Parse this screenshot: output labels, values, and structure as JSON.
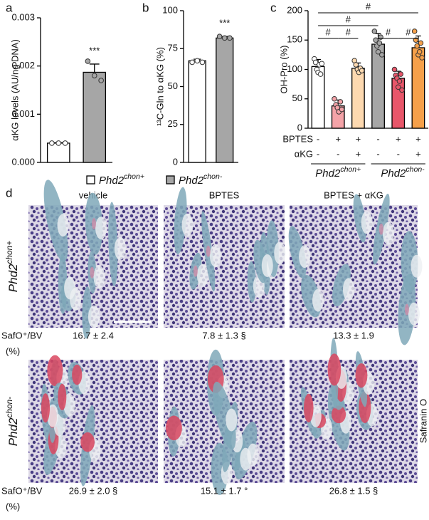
{
  "panel_labels": [
    "a",
    "b",
    "c",
    "d"
  ],
  "chart_data": [
    {
      "type": "bar",
      "y_label": "αKG levels (AU/ng DNA)",
      "values": [
        0.0004,
        0.00187
      ],
      "errors": [
        1e-05,
        0.00017
      ],
      "points": [
        [
          0.0004,
          0.0004,
          0.0004
        ],
        [
          0.0021,
          0.0018,
          0.0017
        ]
      ],
      "colors": [
        "#ffffff",
        "#a6a6a6"
      ],
      "ylim": [
        0,
        0.003
      ],
      "yticks": [
        {
          "value": 0,
          "label": "0.000"
        },
        {
          "value": 0.001,
          "label": "0.001"
        },
        {
          "value": 0.002,
          "label": "0.002"
        },
        {
          "value": 0.003,
          "label": "0.003"
        }
      ],
      "annotations": [
        "***"
      ]
    },
    {
      "type": "bar",
      "y_label": "¹³C-Gln to αKG (%)",
      "values": [
        67,
        82
      ],
      "errors": [
        1,
        1
      ],
      "points": [
        [
          66,
          67,
          66
        ],
        [
          83,
          82,
          82
        ]
      ],
      "colors": [
        "#ffffff",
        "#a6a6a6"
      ],
      "ylim": [
        0,
        100
      ],
      "yticks": [
        0,
        25,
        50,
        75,
        100
      ],
      "annotations": [
        "***"
      ]
    },
    {
      "type": "bar",
      "y_label": "OH-Pro (%)",
      "values": [
        105,
        38,
        102,
        143,
        85,
        137
      ],
      "errors": [
        12,
        10,
        9,
        18,
        12,
        20
      ],
      "points": [
        [
          118,
          112,
          100,
          95,
          108,
          92,
          110
        ],
        [
          50,
          40,
          35,
          28,
          45,
          32
        ],
        [
          115,
          108,
          100,
          95,
          102,
          98
        ],
        [
          165,
          150,
          140,
          130,
          145,
          155,
          125
        ],
        [
          100,
          90,
          85,
          70,
          80,
          92,
          65
        ],
        [
          165,
          150,
          140,
          125,
          130,
          145,
          120
        ]
      ],
      "colors": [
        "#ffffff",
        "#f4a3a8",
        "#fdd9b0",
        "#a6a6a6",
        "#e8566a",
        "#f5a04a"
      ],
      "ylim": [
        0,
        200
      ],
      "yticks": [
        0,
        50,
        100,
        150,
        200
      ],
      "annotations": [
        "#",
        "#",
        "#",
        "#",
        "#",
        "#"
      ]
    }
  ],
  "legend": [
    {
      "gene": "Phd2",
      "sup": "chon+",
      "color": "#ffffff"
    },
    {
      "gene": "Phd2",
      "sup": "chon-",
      "color": "#a6a6a6"
    }
  ],
  "treatments": [
    {
      "label": "BPTES",
      "signs": [
        "-",
        "+",
        "+",
        "-",
        "+",
        "+"
      ]
    },
    {
      "label": "αKG",
      "signs": [
        "-",
        "-",
        "+",
        "-",
        "-",
        "+"
      ]
    }
  ],
  "groups": [
    {
      "gene": "Phd2",
      "sup": "chon+"
    },
    {
      "gene": "Phd2",
      "sup": "chon-"
    }
  ],
  "histology": {
    "columns": [
      "vehicle",
      "BPTES",
      "BPTES + αKG"
    ],
    "rows": [
      {
        "gene": "Phd2",
        "sup": "chon+",
        "metric": "SafO⁺/BV",
        "unit": "(%)",
        "values": [
          "16.7 ± 2.4",
          "7.8 ± 1.3 §",
          "13.3 ± 1.9"
        ]
      },
      {
        "gene": "Phd2",
        "sup": "chon-",
        "metric": "SafO⁺/BV",
        "unit": "(%)",
        "values": [
          "26.9 ± 2.0 §",
          "15.1 ± 1.7 °",
          "26.8 ± 1.5 §"
        ]
      }
    ],
    "stain": "Safranin O"
  }
}
